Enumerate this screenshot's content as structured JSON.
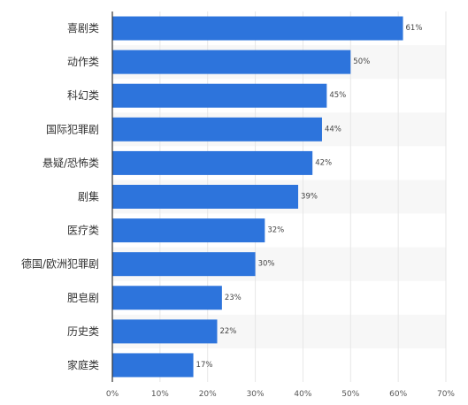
{
  "chart_data": {
    "type": "bar",
    "orientation": "horizontal",
    "title": "",
    "xlabel": "",
    "ylabel": "",
    "categories": [
      "喜剧类",
      "动作类",
      "科幻类",
      "国际犯罪剧",
      "悬疑/恐怖类",
      "剧集",
      "医疗类",
      "德国/欧洲犯罪剧",
      "肥皂剧",
      "历史类",
      "家庭类"
    ],
    "values": [
      61,
      50,
      45,
      44,
      42,
      39,
      32,
      30,
      23,
      22,
      17
    ],
    "value_labels": [
      "61%",
      "50%",
      "45%",
      "44%",
      "42%",
      "39%",
      "32%",
      "30%",
      "23%",
      "22%",
      "17%"
    ],
    "xlim": [
      0,
      70
    ],
    "xticks": [
      0,
      10,
      20,
      30,
      40,
      50,
      60,
      70
    ],
    "xtick_labels": [
      "0%",
      "10%",
      "20%",
      "30%",
      "40%",
      "50%",
      "60%",
      "70%"
    ],
    "grid": true,
    "colors": {
      "bar": "#2d74dc",
      "band": "#f7f7f7",
      "grid": "#e6e6e6",
      "axis": "#333333"
    }
  }
}
